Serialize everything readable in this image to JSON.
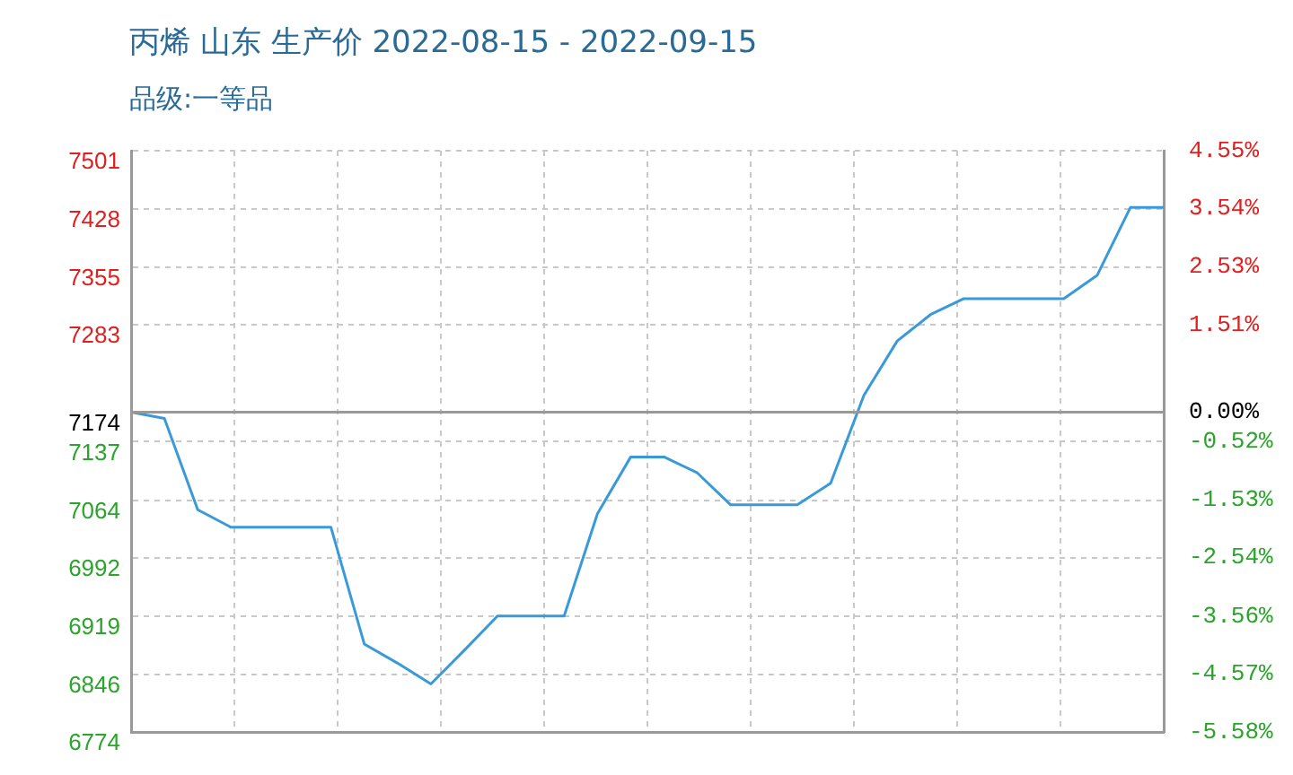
{
  "chart_data": {
    "type": "line",
    "title": "丙烯 山东 生产价 2022-08-15 - 2022-09-15",
    "subtitle": "品级:一等品",
    "categories": [
      null,
      null,
      null,
      null,
      null,
      null,
      null,
      null,
      null,
      null,
      null,
      null,
      null,
      null,
      null,
      null,
      null,
      null,
      null,
      null,
      null,
      null,
      null,
      null,
      null,
      null,
      null,
      null,
      null,
      null,
      null,
      null
    ],
    "series": [
      {
        "color": "#3a9ad9",
        "values": [
          7174,
          7166,
          7052,
          7030,
          7030,
          7030,
          7030,
          6884,
          6860,
          6834,
          6876,
          6919,
          6919,
          6919,
          7047,
          7118,
          7118,
          7098,
          7058,
          7058,
          7058,
          7085,
          7195,
          7263,
          7296,
          7316,
          7316,
          7316,
          7316,
          7345,
          7430,
          7430
        ]
      }
    ],
    "ylim": [
      6774,
      7501
    ],
    "yticks": [
      6774,
      6846,
      6919,
      6992,
      7064,
      7137,
      7174,
      7283,
      7355,
      7428,
      7501
    ],
    "y2lim": [
      -5.58,
      4.55
    ],
    "y2ticks": [
      {
        "value": -5.58,
        "label": "-5.58%"
      },
      {
        "value": -4.57,
        "label": "-4.57%"
      },
      {
        "value": -3.56,
        "label": "-3.56%"
      },
      {
        "value": -2.54,
        "label": "-2.54%"
      },
      {
        "value": -1.53,
        "label": "-1.53%"
      },
      {
        "value": -0.52,
        "label": "-0.52%"
      },
      {
        "value": 0,
        "label": "0.00%"
      },
      {
        "value": 1.51,
        "label": "1.51%"
      },
      {
        "value": 2.53,
        "label": "2.53%"
      },
      {
        "value": 3.54,
        "label": "3.54%"
      },
      {
        "value": 4.55,
        "label": "4.55%"
      }
    ],
    "ref_lines": [
      {
        "axis": "y",
        "value": 7174,
        "color": "#999999",
        "line_style": "solid"
      }
    ],
    "grid": true,
    "legend": false,
    "marker": "none",
    "line_style": "solid"
  }
}
